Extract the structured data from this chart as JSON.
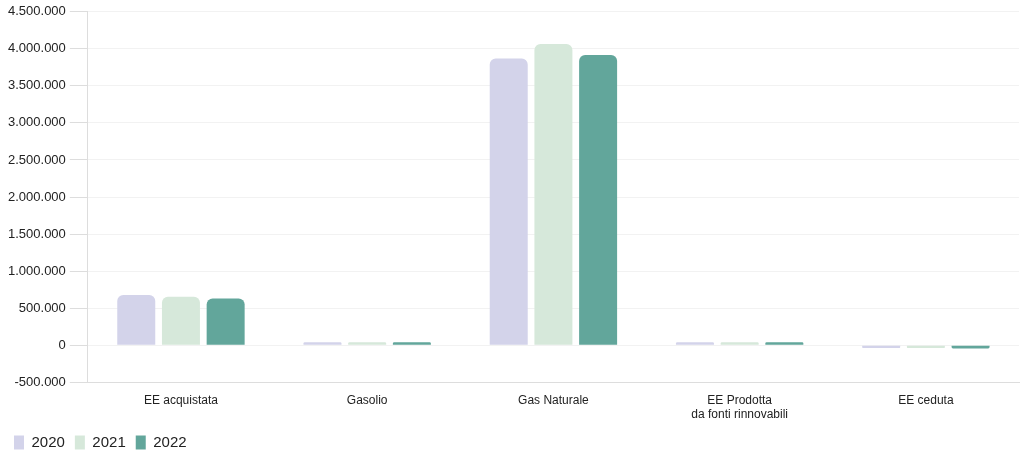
{
  "chart_data": {
    "type": "bar",
    "categories": [
      "EE acquistata",
      "Gasolio",
      "Gas Naturale",
      "EE Prodotta\nda fonti rinnovabili",
      "EE ceduta"
    ],
    "series": [
      {
        "name": "2020",
        "color": "#d3d3ea",
        "values": [
          676000,
          40000,
          3870000,
          40000,
          -40000
        ]
      },
      {
        "name": "2021",
        "color": "#d6e8da",
        "values": [
          653000,
          40000,
          4066000,
          40000,
          -40000
        ]
      },
      {
        "name": "2022",
        "color": "#62a69b",
        "values": [
          630000,
          40000,
          3917000,
          40000,
          -45000
        ]
      }
    ],
    "ylim": [
      -500000,
      4500000
    ],
    "yticks": [
      {
        "value": -500000,
        "label": "-500.000"
      },
      {
        "value": 0,
        "label": "0"
      },
      {
        "value": 500000,
        "label": "500.000"
      },
      {
        "value": 1000000,
        "label": "1.000.000"
      },
      {
        "value": 1500000,
        "label": "1.500.000"
      },
      {
        "value": 2000000,
        "label": "2.000.000"
      },
      {
        "value": 2500000,
        "label": "2.500.000"
      },
      {
        "value": 3000000,
        "label": "3.000.000"
      },
      {
        "value": 3500000,
        "label": "3.500.000"
      },
      {
        "value": 4000000,
        "label": "4.000.000"
      },
      {
        "value": 4500000,
        "label": "4.500.000"
      }
    ],
    "grid": "y",
    "legend": "bottom left"
  }
}
